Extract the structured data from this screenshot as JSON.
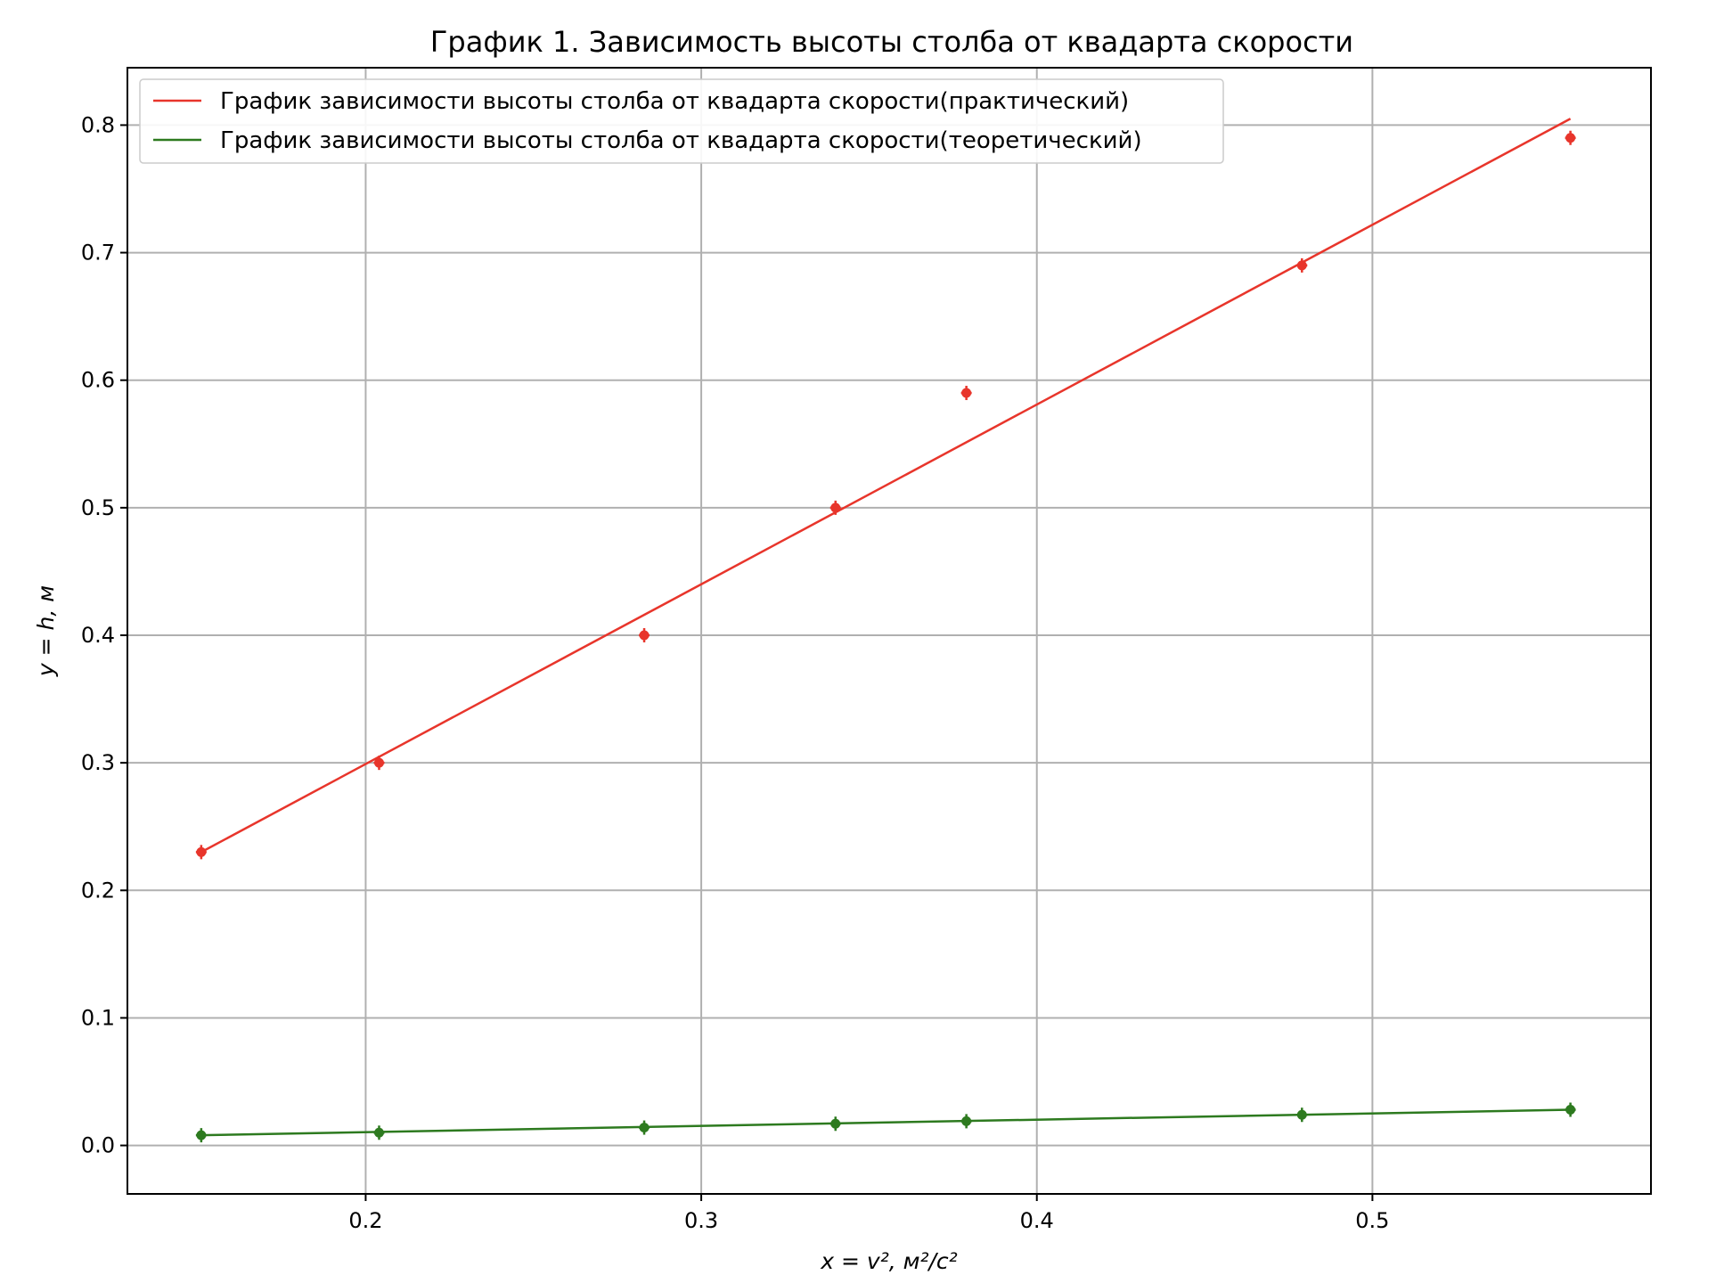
{
  "chart_data": {
    "type": "line",
    "title": "График 1. Зависимость высоты столба от квадарта скорости",
    "xlabel": "x = v², м²/с²",
    "ylabel": "y = h, м",
    "xlim": [
      0.129,
      0.583
    ],
    "ylim": [
      -0.038,
      0.845
    ],
    "xticks": [
      0.2,
      0.3,
      0.4,
      0.5
    ],
    "xtick_labels": [
      "0.2",
      "0.3",
      "0.4",
      "0.5"
    ],
    "yticks": [
      0.0,
      0.1,
      0.2,
      0.3,
      0.4,
      0.5,
      0.6,
      0.7,
      0.8
    ],
    "ytick_labels": [
      "0.0",
      "0.1",
      "0.2",
      "0.3",
      "0.4",
      "0.5",
      "0.6",
      "0.7",
      "0.8"
    ],
    "grid": true,
    "legend_position": "top-left",
    "series": [
      {
        "name": "График зависимости высоты столба от квадарта скорости(практический)",
        "color": "#e8352b",
        "points": [
          {
            "x": 0.151,
            "y": 0.23
          },
          {
            "x": 0.204,
            "y": 0.3
          },
          {
            "x": 0.283,
            "y": 0.4
          },
          {
            "x": 0.34,
            "y": 0.5
          },
          {
            "x": 0.379,
            "y": 0.59
          },
          {
            "x": 0.479,
            "y": 0.69
          },
          {
            "x": 0.559,
            "y": 0.79
          }
        ],
        "fit_line": [
          {
            "x": 0.151,
            "y": 0.23
          },
          {
            "x": 0.559,
            "y": 0.805
          }
        ]
      },
      {
        "name": "График зависимости высоты столба от квадарта скорости(теоретический)",
        "color": "#2d7a1f",
        "points": [
          {
            "x": 0.151,
            "y": 0.008
          },
          {
            "x": 0.204,
            "y": 0.01
          },
          {
            "x": 0.283,
            "y": 0.014
          },
          {
            "x": 0.34,
            "y": 0.017
          },
          {
            "x": 0.379,
            "y": 0.019
          },
          {
            "x": 0.479,
            "y": 0.024
          },
          {
            "x": 0.559,
            "y": 0.028
          }
        ],
        "fit_line": [
          {
            "x": 0.151,
            "y": 0.008
          },
          {
            "x": 0.559,
            "y": 0.028
          }
        ]
      }
    ]
  }
}
